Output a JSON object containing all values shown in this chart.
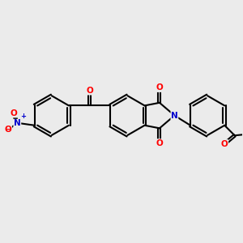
{
  "bg_color": "#ebebeb",
  "bond_color": "#000000",
  "bond_width": 1.5,
  "atom_colors": {
    "O": "#ff0000",
    "N": "#0000cd",
    "C": "#000000"
  },
  "fig_size": [
    3.0,
    3.0
  ],
  "dpi": 100
}
